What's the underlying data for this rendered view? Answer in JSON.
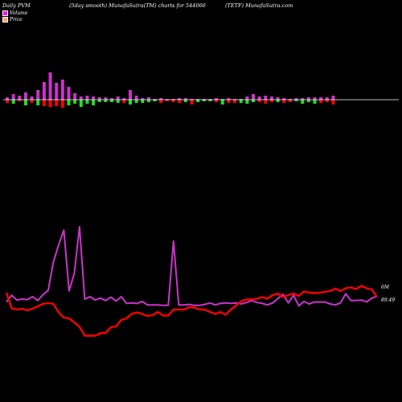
{
  "header": {
    "left": "Daily PVM",
    "center_left": "(5day smooth) MunafaSutra(TM) charts for 544066",
    "center_right": "(TETF) MunafaSutra.com"
  },
  "legend": [
    {
      "label": "Volume",
      "color": "#ff00ff"
    },
    {
      "label": "Price",
      "color": "#ffa07a"
    }
  ],
  "colors": {
    "volume_line": "#cc33cc",
    "price_line": "#ff0000",
    "pvm_up": "#cc33cc",
    "pvm_down_red": "#ff0000",
    "pvm_down_green": "#22dd22",
    "baseline": "#ffffff"
  },
  "chart_data": [
    {
      "type": "bar",
      "name": "pvm",
      "baseline": 0,
      "up": [
        3,
        7,
        5,
        9,
        4,
        12,
        22,
        34,
        21,
        25,
        16,
        8,
        4,
        5,
        4,
        3,
        3,
        2,
        4,
        2,
        12,
        5,
        2,
        3,
        1,
        2,
        1,
        1,
        2,
        2,
        1,
        1,
        1,
        1,
        2,
        1,
        2,
        1,
        1,
        4,
        7,
        4,
        5,
        4,
        3,
        2,
        1,
        2,
        2,
        3,
        3,
        3,
        3,
        5
      ],
      "down": [
        4,
        5,
        2,
        7,
        4,
        7,
        8,
        9,
        8,
        10,
        7,
        5,
        9,
        5,
        7,
        3,
        3,
        3,
        4,
        4,
        6,
        4,
        4,
        3,
        2,
        4,
        2,
        3,
        4,
        3,
        6,
        3,
        2,
        2,
        3,
        6,
        4,
        4,
        4,
        5,
        3,
        3,
        5,
        3,
        3,
        4,
        3,
        2,
        5,
        3,
        5,
        4,
        3,
        6
      ],
      "down_colors": [
        "red",
        "green",
        "red",
        "green",
        "red",
        "green",
        "red",
        "red",
        "red",
        "red",
        "green",
        "green",
        "green",
        "green",
        "green",
        "green",
        "green",
        "green",
        "green",
        "red",
        "green",
        "green",
        "green",
        "green",
        "green",
        "red",
        "red",
        "red",
        "red",
        "green",
        "red",
        "green",
        "green",
        "green",
        "red",
        "green",
        "red",
        "red",
        "green",
        "green",
        "green",
        "red",
        "red",
        "red",
        "green",
        "red",
        "red",
        "green",
        "green",
        "green",
        "green",
        "red",
        "red",
        "red"
      ]
    },
    {
      "type": "line",
      "name": "volume",
      "values": [
        4.8,
        7.6,
        5.6,
        6.0,
        5.8,
        7.0,
        5.4,
        7.8,
        9.6,
        21.4,
        28.4,
        34.6,
        9.4,
        16.6,
        36.0,
        6.0,
        7.0,
        5.6,
        6.4,
        5.4,
        6.8,
        5.2,
        7.0,
        4.2,
        4.4,
        4.2,
        5.0,
        3.6,
        3.6,
        3.6,
        3.4,
        3.4,
        30.0,
        3.6,
        3.6,
        3.8,
        3.4,
        3.4,
        3.8,
        4.4,
        3.6,
        4.2,
        4.4,
        4.2,
        4.4,
        4.0,
        4.6,
        5.4,
        4.6,
        4.2,
        3.6,
        4.4,
        6.2,
        8.0,
        4.4,
        7.6,
        3.2,
        5.0,
        4.0,
        4.8,
        4.8,
        4.8,
        4.0,
        3.6,
        4.4,
        8.2,
        5.4,
        5.4,
        5.6,
        4.8,
        6.4,
        7.2
      ],
      "end_label": "6M"
    },
    {
      "type": "line",
      "name": "price",
      "values": [
        103.8,
        99.9,
        99.6,
        99.8,
        99.4,
        99.8,
        100.4,
        101.0,
        101.2,
        101.0,
        98.9,
        97.6,
        97.4,
        96.4,
        95.3,
        93.1,
        93.1,
        93.1,
        93.7,
        93.8,
        95.2,
        95.4,
        97.0,
        97.4,
        98.5,
        98.9,
        98.5,
        98.0,
        98.2,
        99.0,
        98.1,
        98.1,
        99.6,
        99.6,
        99.6,
        100.2,
        100.1,
        99.6,
        99.6,
        99.0,
        98.5,
        99.0,
        98.3,
        99.6,
        100.6,
        101.7,
        102.1,
        102.1,
        102.3,
        102.7,
        102.3,
        103.2,
        103.6,
        102.7,
        103.2,
        103.6,
        103.0,
        104.1,
        103.8,
        103.7,
        103.8,
        104.0,
        104.2,
        104.8,
        104.2,
        104.9,
        105.1,
        104.7,
        105.5,
        104.9,
        104.6,
        102.7
      ],
      "end_label": "89.49"
    }
  ]
}
